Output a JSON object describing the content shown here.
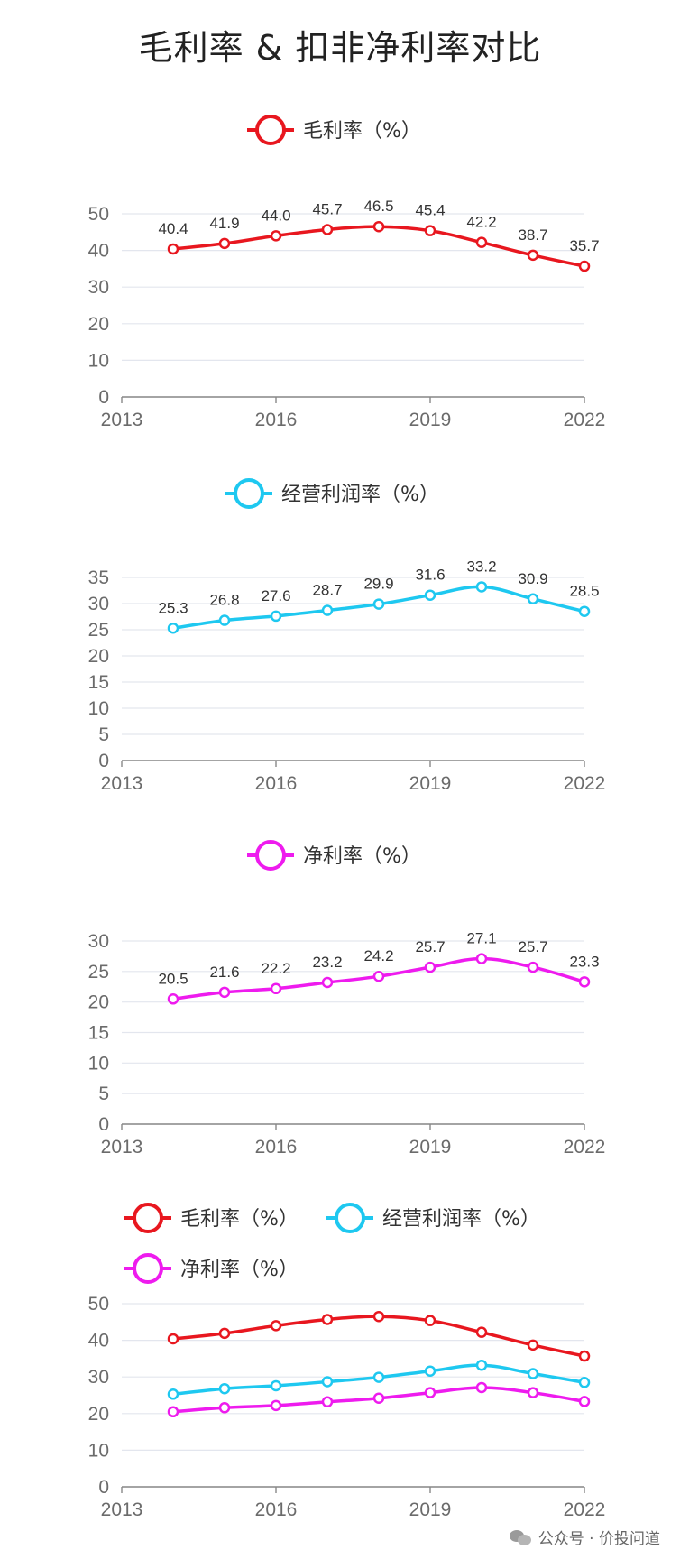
{
  "title": "毛利率 & 扣非净利率对比",
  "watermark": "公众号 · 价投问道",
  "colors": {
    "gross": "#e8171f",
    "operating": "#1ec8f0",
    "net": "#ee1bee",
    "grid": "#e3e6ee",
    "axis": "#6b6b6b"
  },
  "chart_data": [
    {
      "type": "line",
      "series": [
        {
          "name": "毛利率（%）",
          "color": "#e8171f",
          "x": [
            2014,
            2015,
            2016,
            2017,
            2018,
            2019,
            2020,
            2021,
            2022
          ],
          "values": [
            40.4,
            41.9,
            44.0,
            45.7,
            46.5,
            45.4,
            42.2,
            38.7,
            35.7
          ],
          "labels": [
            "40.4",
            "41.9",
            "44.0",
            "45.7",
            "46.5",
            "45.4",
            "42.2",
            "38.7",
            "35.7"
          ]
        }
      ],
      "xlim": [
        2013,
        2022
      ],
      "xticks": [
        "2013",
        "2016",
        "2019",
        "2022"
      ],
      "ylim": [
        0,
        50
      ],
      "yticks": [
        "0",
        "10",
        "20",
        "30",
        "40",
        "50"
      ],
      "show_values": true,
      "grid": true,
      "legend": "top-center"
    },
    {
      "type": "line",
      "series": [
        {
          "name": "经营利润率（%）",
          "color": "#1ec8f0",
          "x": [
            2014,
            2015,
            2016,
            2017,
            2018,
            2019,
            2020,
            2021,
            2022
          ],
          "values": [
            25.3,
            26.8,
            27.6,
            28.7,
            29.9,
            31.6,
            33.2,
            30.9,
            28.5
          ],
          "labels": [
            "25.3",
            "26.8",
            "27.6",
            "28.7",
            "29.9",
            "31.6",
            "33.2",
            "30.9",
            "28.5"
          ]
        }
      ],
      "xlim": [
        2013,
        2022
      ],
      "xticks": [
        "2013",
        "2016",
        "2019",
        "2022"
      ],
      "ylim": [
        0,
        35
      ],
      "yticks": [
        "0",
        "5",
        "10",
        "15",
        "20",
        "25",
        "30",
        "35"
      ],
      "show_values": true,
      "grid": true,
      "legend": "top-center"
    },
    {
      "type": "line",
      "series": [
        {
          "name": "净利率（%）",
          "color": "#ee1bee",
          "x": [
            2014,
            2015,
            2016,
            2017,
            2018,
            2019,
            2020,
            2021,
            2022
          ],
          "values": [
            20.5,
            21.6,
            22.2,
            23.2,
            24.2,
            25.7,
            27.1,
            25.7,
            23.3
          ],
          "labels": [
            "20.5",
            "21.6",
            "22.2",
            "23.2",
            "24.2",
            "25.7",
            "27.1",
            "25.7",
            "23.3"
          ]
        }
      ],
      "xlim": [
        2013,
        2022
      ],
      "xticks": [
        "2013",
        "2016",
        "2019",
        "2022"
      ],
      "ylim": [
        0,
        30
      ],
      "yticks": [
        "0",
        "5",
        "10",
        "15",
        "20",
        "25",
        "30"
      ],
      "show_values": true,
      "grid": true,
      "legend": "top-center"
    },
    {
      "type": "line",
      "series": [
        {
          "name": "毛利率（%）",
          "color": "#e8171f",
          "x": [
            2014,
            2015,
            2016,
            2017,
            2018,
            2019,
            2020,
            2021,
            2022
          ],
          "values": [
            40.4,
            41.9,
            44.0,
            45.7,
            46.5,
            45.4,
            42.2,
            38.7,
            35.7
          ]
        },
        {
          "name": "经营利润率（%）",
          "color": "#1ec8f0",
          "x": [
            2014,
            2015,
            2016,
            2017,
            2018,
            2019,
            2020,
            2021,
            2022
          ],
          "values": [
            25.3,
            26.8,
            27.6,
            28.7,
            29.9,
            31.6,
            33.2,
            30.9,
            28.5
          ]
        },
        {
          "name": "净利率（%）",
          "color": "#ee1bee",
          "x": [
            2014,
            2015,
            2016,
            2017,
            2018,
            2019,
            2020,
            2021,
            2022
          ],
          "values": [
            20.5,
            21.6,
            22.2,
            23.2,
            24.2,
            25.7,
            27.1,
            25.7,
            23.3
          ]
        }
      ],
      "xlim": [
        2013,
        2022
      ],
      "xticks": [
        "2013",
        "2016",
        "2019",
        "2022"
      ],
      "ylim": [
        0,
        50
      ],
      "yticks": [
        "0",
        "10",
        "20",
        "30",
        "40",
        "50"
      ],
      "show_values": false,
      "grid": true,
      "legend": "top-left"
    }
  ]
}
